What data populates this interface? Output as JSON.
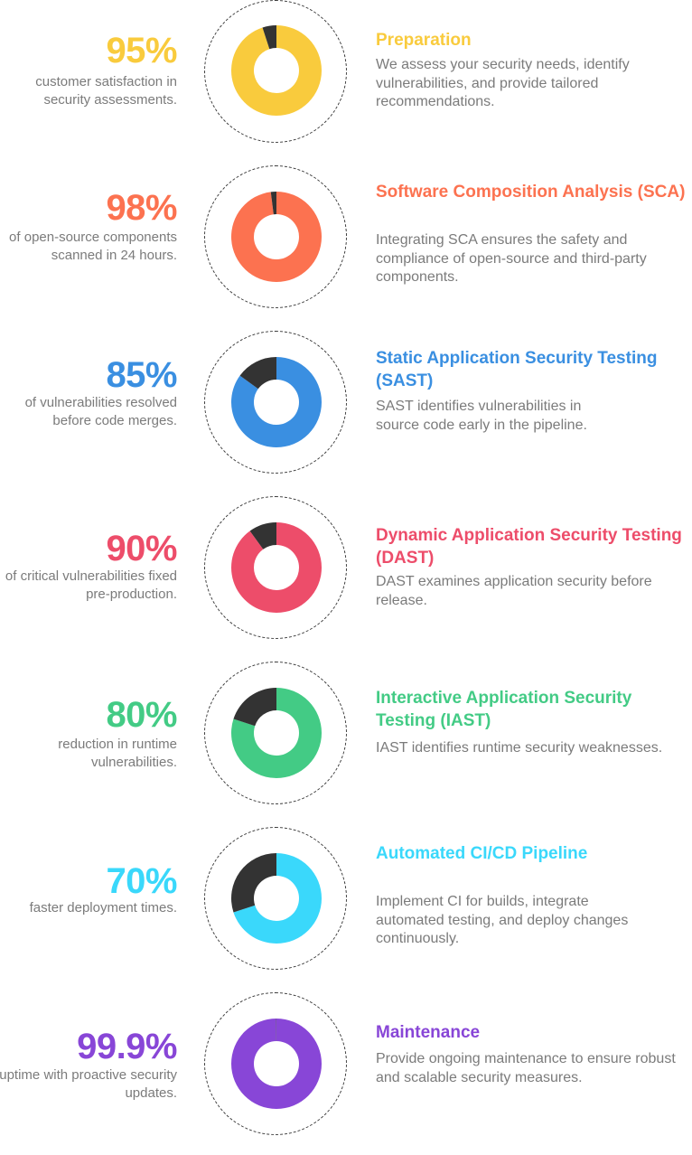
{
  "steps": [
    {
      "percent": "95%",
      "fraction": 0.95,
      "stat": "customer satisfaction in security assessments.",
      "title": "Preparation",
      "description": "We assess your security needs, identify vulnerabilities, and provide tailored recommendations.",
      "color": "#F9CB3D"
    },
    {
      "percent": "98%",
      "fraction": 0.98,
      "stat": "of open-source components scanned in 24 hours.",
      "title": "Software Composition Analysis (SCA)",
      "description": "Integrating SCA ensures the safety and compliance of open-source and third-party components.",
      "color": "#FC7250"
    },
    {
      "percent": "85%",
      "fraction": 0.85,
      "stat": "of vulnerabilities resolved before code merges.",
      "title": "Static Application Security Testing (SAST)",
      "description": "SAST identifies vulnerabilities in source code early in the pipeline.",
      "color": "#3A8FE1"
    },
    {
      "percent": "90%",
      "fraction": 0.9,
      "stat": "of critical vulnerabilities fixed pre-production.",
      "title": "Dynamic Application Security Testing (DAST)",
      "description": "DAST examines application security before release.",
      "color": "#ED4D6A"
    },
    {
      "percent": "80%",
      "fraction": 0.8,
      "stat": "reduction in runtime vulnerabilities.",
      "title": "Interactive Application Security Testing (IAST)",
      "description": "IAST identifies runtime security weaknesses.",
      "color": "#43CB85"
    },
    {
      "percent": "70%",
      "fraction": 0.7,
      "stat": "faster deployment times.",
      "title": "Automated CI/CD Pipeline",
      "description": "Implement CI for builds, integrate automated testing, and deploy changes continuously.",
      "color": "#3AD8FB"
    },
    {
      "percent": "99.9%",
      "fraction": 0.999,
      "stat": "uptime with proactive security updates.",
      "title": "Maintenance",
      "description": "Provide ongoing maintenance to ensure robust and scalable security measures.",
      "color": "#8846D7"
    }
  ],
  "remainder_color": "#333333"
}
